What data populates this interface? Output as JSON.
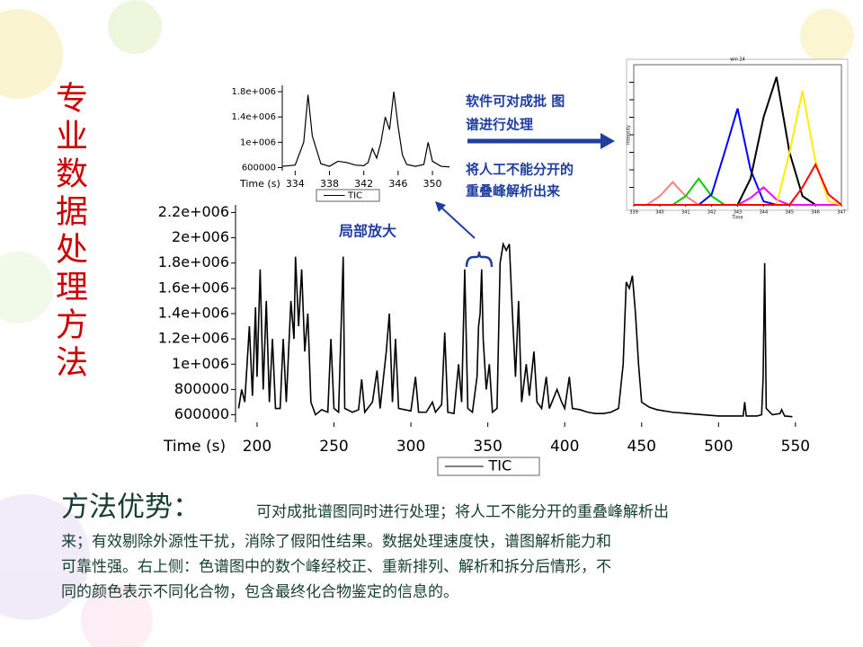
{
  "slide_title": "专业数据处理方法",
  "annotations": {
    "batch": [
      "软件可对成批 图",
      "谱进行处理"
    ],
    "deconvolve": [
      "将人工不能分开的",
      "重叠峰解析出来"
    ],
    "zoom": "局部放大"
  },
  "body": {
    "heading": "方法优势：",
    "lines": [
      "可对成批谱图同时进行处理；将人工不能分开的重叠峰解析出",
      "来；有效剔除外源性干扰，消除了假阳性结果。数据处理速度快，谱图解析能力和",
      "可靠性强。右上侧：色谱图中的数个峰经校正、重新排列、解析和拆分后情形，不",
      "同的颜色表示不同化合物，包含最终化合物鉴定的信息的。"
    ]
  },
  "chart_data": [
    {
      "type": "line",
      "xlabel": "Time (s)",
      "legend": "TIC",
      "color": "#000000",
      "x": [
        188,
        190,
        192,
        195,
        197,
        199,
        200,
        202,
        204,
        206,
        208,
        210,
        212,
        215,
        217,
        219,
        222,
        224,
        225,
        227,
        229,
        231,
        233,
        235,
        238,
        242,
        246,
        248,
        250,
        253,
        256,
        257,
        262,
        266,
        268,
        270,
        275,
        278,
        280,
        284,
        286,
        288,
        290,
        292,
        296,
        300,
        303,
        305,
        310,
        314,
        316,
        320,
        322,
        324,
        328,
        331,
        333,
        335,
        337,
        340,
        343,
        344,
        345,
        346,
        347,
        349,
        351,
        353,
        356,
        358,
        360,
        362,
        364,
        366,
        368,
        370,
        372,
        375,
        377,
        380,
        382,
        385,
        388,
        390,
        395,
        398,
        400,
        403,
        405,
        410,
        415,
        420,
        425,
        430,
        435,
        438,
        440,
        442,
        444,
        446,
        448,
        450,
        455,
        460,
        470,
        480,
        490,
        500,
        510,
        516,
        517,
        518,
        525,
        528,
        529,
        530,
        531,
        535,
        540,
        541,
        543,
        548
      ],
      "values": [
        650000,
        800000,
        700000,
        1300000,
        750000,
        1450000,
        900000,
        1750000,
        800000,
        1500000,
        700000,
        1200000,
        650000,
        650000,
        1200000,
        700000,
        1500000,
        1200000,
        1850000,
        1300000,
        1750000,
        1100000,
        1400000,
        700000,
        600000,
        640000,
        620000,
        1200000,
        650000,
        620000,
        1850000,
        650000,
        620000,
        640000,
        880000,
        620000,
        700000,
        950000,
        650000,
        1100000,
        1400000,
        700000,
        1200000,
        650000,
        640000,
        630000,
        900000,
        620000,
        620000,
        700000,
        620000,
        680000,
        1250000,
        620000,
        610000,
        1000000,
        700000,
        1750000,
        650000,
        620000,
        900000,
        1300000,
        1400000,
        1750000,
        1200000,
        800000,
        1000000,
        620000,
        650000,
        1800000,
        1950000,
        1900000,
        1950000,
        1400000,
        900000,
        1500000,
        700000,
        1000000,
        750000,
        1100000,
        700000,
        650000,
        900000,
        650000,
        800000,
        700000,
        650000,
        900000,
        650000,
        640000,
        620000,
        610000,
        610000,
        620000,
        650000,
        1000000,
        1650000,
        1600000,
        1700000,
        1400000,
        1000000,
        700000,
        660000,
        640000,
        620000,
        610000,
        600000,
        590000,
        590000,
        590000,
        700000,
        590000,
        590000,
        600000,
        900000,
        1800000,
        650000,
        600000,
        610000,
        640000,
        590000,
        585000
      ],
      "xlim": [
        186,
        553
      ],
      "ylim": [
        540000,
        2260000
      ],
      "xticks": [
        200,
        250,
        300,
        350,
        400,
        450,
        500,
        550
      ],
      "yticks": [
        600000,
        800000,
        {
          "value": 1000000,
          "label": "1e+006"
        },
        {
          "value": 1200000,
          "label": "1.2e+006"
        },
        {
          "value": 1400000,
          "label": "1.4e+006"
        },
        {
          "value": 1600000,
          "label": "1.6e+006"
        },
        {
          "value": 1800000,
          "label": "1.8e+006"
        },
        {
          "value": 2000000,
          "label": "2e+006"
        },
        {
          "value": 2200000,
          "label": "2.2e+006"
        }
      ]
    },
    {
      "type": "line",
      "xlabel": "Time (s)",
      "legend": "TIC",
      "color": "#000000",
      "x": [
        332.5,
        334,
        335,
        335.5,
        336,
        337,
        338,
        339,
        340,
        341,
        342,
        342.5,
        343,
        343.5,
        344,
        344.5,
        345,
        345.5,
        346,
        346.5,
        347,
        348,
        349,
        349.5,
        350,
        351,
        352
      ],
      "values": [
        620000,
        640000,
        1000000,
        1750000,
        1100000,
        660000,
        620000,
        700000,
        680000,
        640000,
        630000,
        680000,
        900000,
        750000,
        1000000,
        1400000,
        1200000,
        1800000,
        1250000,
        800000,
        650000,
        620000,
        650000,
        1000000,
        700000,
        620000,
        610000
      ],
      "xlim": [
        332.5,
        352.3
      ],
      "ylim": [
        550000,
        1900000
      ],
      "xticks": [
        334,
        338,
        342,
        346,
        350
      ],
      "yticks": [
        600000,
        {
          "value": 1000000,
          "label": "1e+006"
        },
        {
          "value": 1400000,
          "label": "1.4e+006"
        },
        {
          "value": 1800000,
          "label": "1.8e+006"
        }
      ]
    },
    {
      "type": "line",
      "title": "win 24",
      "xlabel": "Time",
      "ylabel": "Intensity",
      "x": [
        339,
        339.5,
        340,
        340.5,
        341,
        341.5,
        342,
        342.5,
        343,
        343.5,
        344,
        344.5,
        345,
        345.5,
        346,
        346.5,
        347
      ],
      "xlim": [
        339,
        347
      ],
      "ylim": [
        0,
        8
      ],
      "xticks": [
        339,
        340,
        341,
        342,
        343,
        344,
        345,
        346,
        347
      ],
      "yticks": [
        1,
        2,
        3,
        4,
        5,
        6,
        7
      ],
      "series": [
        {
          "color": "#ff8080",
          "values": [
            0,
            0,
            0.5,
            1.3,
            0.5,
            0,
            0,
            0,
            0,
            0,
            0,
            0,
            0,
            0,
            0,
            0,
            0
          ]
        },
        {
          "color": "#00cc00",
          "values": [
            0,
            0,
            0,
            0,
            0.5,
            1.5,
            0.5,
            0,
            0,
            0,
            0,
            0,
            0,
            0,
            0,
            0,
            0
          ]
        },
        {
          "color": "#0000ff",
          "values": [
            0,
            0,
            0,
            0,
            0,
            0,
            0.6,
            3,
            5.5,
            2,
            0.2,
            0,
            0,
            0,
            0,
            0,
            0
          ]
        },
        {
          "color": "#000000",
          "values": [
            0,
            0,
            0,
            0,
            0,
            0,
            0,
            0,
            0,
            1.5,
            5,
            7.3,
            3,
            0.5,
            0,
            0,
            0
          ]
        },
        {
          "color": "#ff00ff",
          "values": [
            0,
            0,
            0,
            0,
            0,
            0,
            0,
            0,
            0,
            0.4,
            1,
            0.3,
            0,
            0,
            0,
            0,
            0
          ]
        },
        {
          "color": "#ffee00",
          "values": [
            0,
            0,
            0,
            0,
            0,
            0,
            0,
            0,
            0,
            0,
            0,
            0,
            3,
            6.5,
            2.5,
            0.2,
            0
          ]
        },
        {
          "color": "#ff0000",
          "values": [
            0,
            0,
            0,
            0,
            0,
            0,
            0,
            0,
            0,
            0,
            0,
            0,
            0,
            1,
            2.3,
            0.6,
            0
          ]
        }
      ]
    }
  ]
}
